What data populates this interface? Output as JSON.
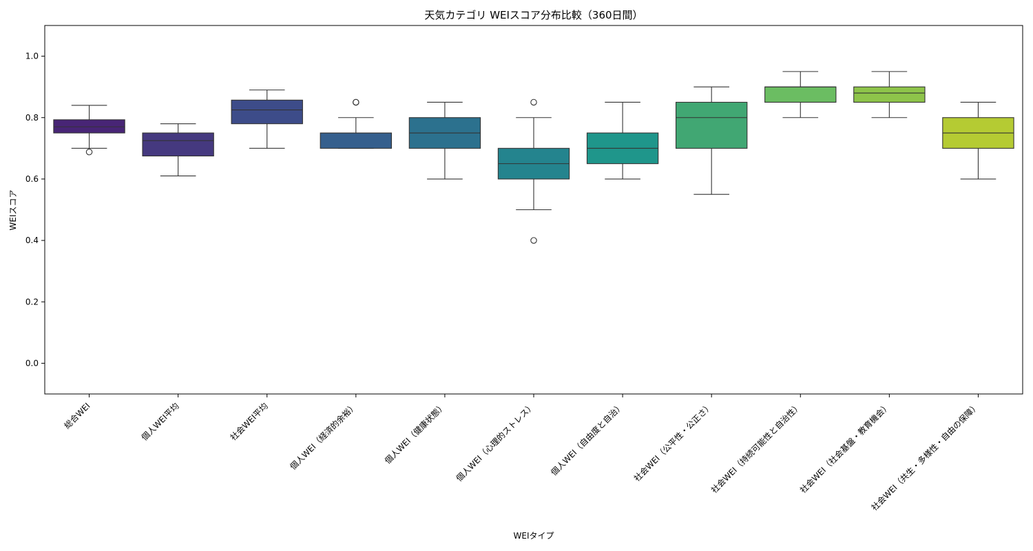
{
  "chart_data": {
    "type": "box",
    "title": "天気カテゴリ WEIスコア分布比較（360日間）",
    "xlabel": "WEIタイプ",
    "ylabel": "WEIスコア",
    "ylim": [
      -0.1,
      1.1
    ],
    "yticks": [
      0.0,
      0.2,
      0.4,
      0.6,
      0.8,
      1.0
    ],
    "ytick_labels": [
      "0.0",
      "0.2",
      "0.4",
      "0.6",
      "0.8",
      "1.0"
    ],
    "grid": false,
    "legend": "none",
    "categories": [
      "総合WEI",
      "個人WEI平均",
      "社会WEI平均",
      "個人WEI（経済的余裕）",
      "個人WEI（健康状態）",
      "個人WEI（心理的ストレス）",
      "個人WEI（自由度と自治）",
      "社会WEI（公平性・公正さ）",
      "社会WEI（持続可能性と自治性）",
      "社会WEI（社会基盤・教育機会）",
      "社会WEI（共生・多様性・自由の保障）"
    ],
    "boxes": [
      {
        "whisker_low": 0.7,
        "q1": 0.75,
        "median": 0.77,
        "q3": 0.793,
        "whisker_high": 0.84,
        "outliers": [
          0.688
        ],
        "color": "#482576"
      },
      {
        "whisker_low": 0.61,
        "q1": 0.675,
        "median": 0.725,
        "q3": 0.75,
        "whisker_high": 0.78,
        "outliers": [],
        "color": "#45397f"
      },
      {
        "whisker_low": 0.7,
        "q1": 0.78,
        "median": 0.825,
        "q3": 0.857,
        "whisker_high": 0.89,
        "outliers": [],
        "color": "#3d4c89"
      },
      {
        "whisker_low": 0.7,
        "q1": 0.7,
        "median": 0.75,
        "q3": 0.75,
        "whisker_high": 0.8,
        "outliers": [
          0.85,
          0.85
        ],
        "color": "#355f8d"
      },
      {
        "whisker_low": 0.6,
        "q1": 0.7,
        "median": 0.75,
        "q3": 0.8,
        "whisker_high": 0.85,
        "outliers": [],
        "color": "#2c718e"
      },
      {
        "whisker_low": 0.5,
        "q1": 0.6,
        "median": 0.65,
        "q3": 0.7,
        "whisker_high": 0.8,
        "outliers": [
          0.85,
          0.4
        ],
        "color": "#24848e"
      },
      {
        "whisker_low": 0.6,
        "q1": 0.65,
        "median": 0.7,
        "q3": 0.75,
        "whisker_high": 0.85,
        "outliers": [],
        "color": "#1f968b"
      },
      {
        "whisker_low": 0.55,
        "q1": 0.7,
        "median": 0.8,
        "q3": 0.85,
        "whisker_high": 0.9,
        "outliers": [],
        "color": "#41a773"
      },
      {
        "whisker_low": 0.8,
        "q1": 0.85,
        "median": 0.9,
        "q3": 0.9,
        "whisker_high": 0.95,
        "outliers": [],
        "color": "#6bbd62"
      },
      {
        "whisker_low": 0.8,
        "q1": 0.85,
        "median": 0.88,
        "q3": 0.9,
        "whisker_high": 0.95,
        "outliers": [],
        "color": "#8ec44a"
      },
      {
        "whisker_low": 0.6,
        "q1": 0.7,
        "median": 0.75,
        "q3": 0.8,
        "whisker_high": 0.85,
        "outliers": [],
        "color": "#b5cb33"
      }
    ]
  }
}
